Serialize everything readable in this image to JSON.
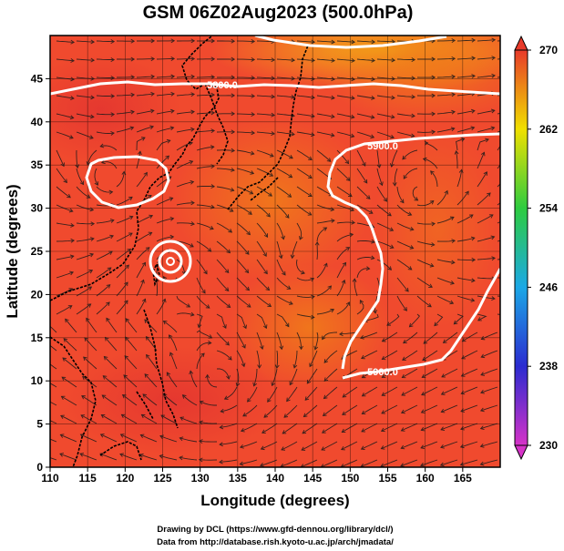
{
  "title": "GSM 06Z02Aug2023 (500.0hPa)",
  "xlabel": "Longitude (degrees)",
  "ylabel": "Latitude  (degrees)",
  "credits": {
    "line1": "Drawing by DCL (https://www.gfd-dennou.org/library/dcl/)",
    "line2": "Data from http://database.rish.kyoto-u.ac.jp/arch/jmadata/"
  },
  "chart_data": {
    "type": "heatmap",
    "title": "GSM 06Z02Aug2023 (500.0hPa)",
    "xlabel": "Longitude (degrees)",
    "ylabel": "Latitude  (degrees)",
    "xlim": [
      110,
      170
    ],
    "ylim": [
      0,
      50
    ],
    "x_ticks": [
      110,
      115,
      120,
      125,
      130,
      135,
      140,
      145,
      150,
      155,
      160,
      165
    ],
    "y_ticks": [
      0,
      5,
      10,
      15,
      20,
      25,
      30,
      35,
      40,
      45
    ],
    "grid": true,
    "colorbar": {
      "min": 230,
      "max": 270,
      "ticks": [
        230,
        238,
        246,
        254,
        262,
        270
      ],
      "colors": [
        "#d633c8",
        "#2b2bd0",
        "#1ba8e6",
        "#2ecc40",
        "#f0e000",
        "#e83a2a"
      ]
    },
    "contour_labels": [
      {
        "text": "5800.0",
        "lon": 127,
        "lat": 45.5
      },
      {
        "text": "5900.0",
        "lon": 147,
        "lat": 39
      },
      {
        "text": "5900.0",
        "lon": 153,
        "lat": 10
      }
    ],
    "field_colors": {
      "base": "#f04a2e",
      "warm": "#f07a1a",
      "hot": "#f4b016",
      "cool": "#e8452f"
    }
  }
}
